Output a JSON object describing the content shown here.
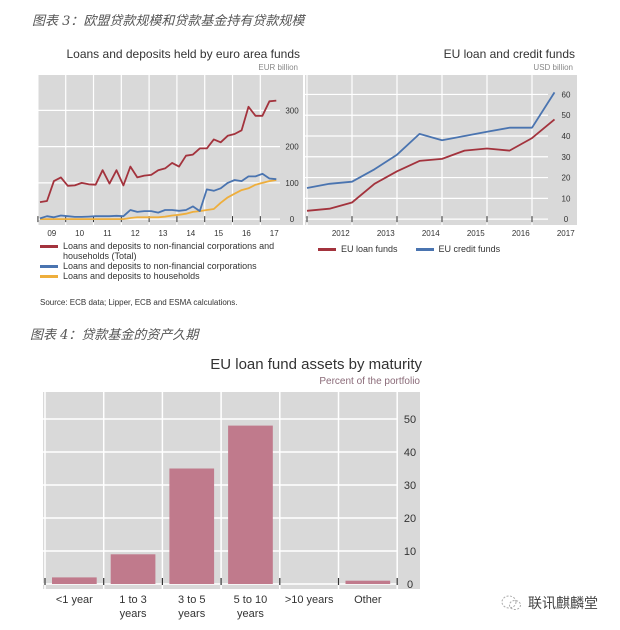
{
  "captions": {
    "fig3": "图表 3：欧盟贷款规模和贷款基金持有贷款规模",
    "fig4": "图表 4：贷款基金的资产久期"
  },
  "watermark": {
    "text": "联讯麒麟堂",
    "icon": "wechat-icon"
  },
  "colors": {
    "red": "#a3333d",
    "blue": "#4a74b0",
    "orange": "#eeae3c",
    "bar": "#c07a8c",
    "panel": "#d9d9d9",
    "grid": "#ffffff"
  },
  "chart_data": [
    {
      "type": "line",
      "title": "Loans and deposits held by euro area funds",
      "unit": "EUR billion",
      "x_tick_labels": [
        "09",
        "10",
        "11",
        "12",
        "13",
        "14",
        "15",
        "16",
        "17"
      ],
      "y_ticks": [
        0,
        100,
        200,
        300
      ],
      "ylim": [
        -10,
        340
      ],
      "grid": true,
      "x_frequency": "quarterly, 2009Q1–2017Q3",
      "series": [
        {
          "name": "Loans and deposits to non-financial corporations and households (Total)",
          "color": "#a3333d",
          "values": [
            47,
            50,
            105,
            115,
            92,
            93,
            100,
            96,
            95,
            135,
            98,
            135,
            93,
            145,
            115,
            120,
            122,
            135,
            140,
            155,
            145,
            175,
            178,
            195,
            195,
            220,
            212,
            230,
            235,
            245,
            310,
            285,
            285,
            325,
            327
          ]
        },
        {
          "name": "Loans and deposits to non-financial corporations",
          "color": "#4a74b0",
          "values": [
            2,
            8,
            5,
            10,
            8,
            6,
            6,
            7,
            8,
            8,
            8,
            9,
            8,
            25,
            20,
            22,
            22,
            18,
            25,
            25,
            23,
            25,
            35,
            22,
            82,
            78,
            85,
            100,
            108,
            105,
            118,
            118,
            125,
            112,
            110
          ]
        },
        {
          "name": "Loans and deposits to households",
          "color": "#eeae3c",
          "values": [
            0,
            0,
            0,
            0,
            0,
            0,
            0,
            0,
            0,
            0,
            0,
            0,
            0,
            3,
            5,
            5,
            5,
            5,
            7,
            10,
            12,
            15,
            20,
            22,
            25,
            28,
            45,
            60,
            70,
            80,
            85,
            95,
            100,
            105,
            108
          ]
        }
      ],
      "legend_position": "bottom",
      "source": "Source: ECB data; Lipper, ECB and ESMA calculations."
    },
    {
      "type": "line",
      "title": "EU loan and credit funds",
      "unit": "USD billion",
      "x": [
        "2011-12",
        "2012-06",
        "2012-12",
        "2013-06",
        "2013-12",
        "2014-06",
        "2014-12",
        "2015-06",
        "2015-12",
        "2016-06",
        "2016-12",
        "2017-06"
      ],
      "x_tick_labels": [
        "2012",
        "2013",
        "2014",
        "2015",
        "2016",
        "2017"
      ],
      "y_ticks": [
        0,
        10,
        20,
        30,
        40,
        50,
        60
      ],
      "ylim": [
        -2,
        67
      ],
      "grid": true,
      "series": [
        {
          "name": "EU loan funds",
          "color": "#a3333d",
          "values": [
            4,
            5,
            8,
            17,
            23,
            28,
            29,
            33,
            34,
            33,
            39,
            48
          ]
        },
        {
          "name": "EU credit funds",
          "color": "#4a74b0",
          "values": [
            15,
            17,
            18,
            24,
            31,
            41,
            38,
            40,
            42,
            44,
            44,
            61
          ]
        }
      ],
      "legend_position": "bottom"
    },
    {
      "type": "bar",
      "title": "EU loan fund assets by maturity",
      "unit": "Percent of the portfolio",
      "categories": [
        [
          "<1 year"
        ],
        [
          "1 to 3",
          "years"
        ],
        [
          "3 to 5",
          "years"
        ],
        [
          "5 to 10",
          "years"
        ],
        [
          ">10 years"
        ],
        [
          "Other"
        ]
      ],
      "values": [
        2,
        9,
        35,
        48,
        0,
        1
      ],
      "y_ticks": [
        0,
        10,
        20,
        30,
        40,
        50
      ],
      "ylim": [
        0,
        58
      ],
      "grid": true
    }
  ]
}
